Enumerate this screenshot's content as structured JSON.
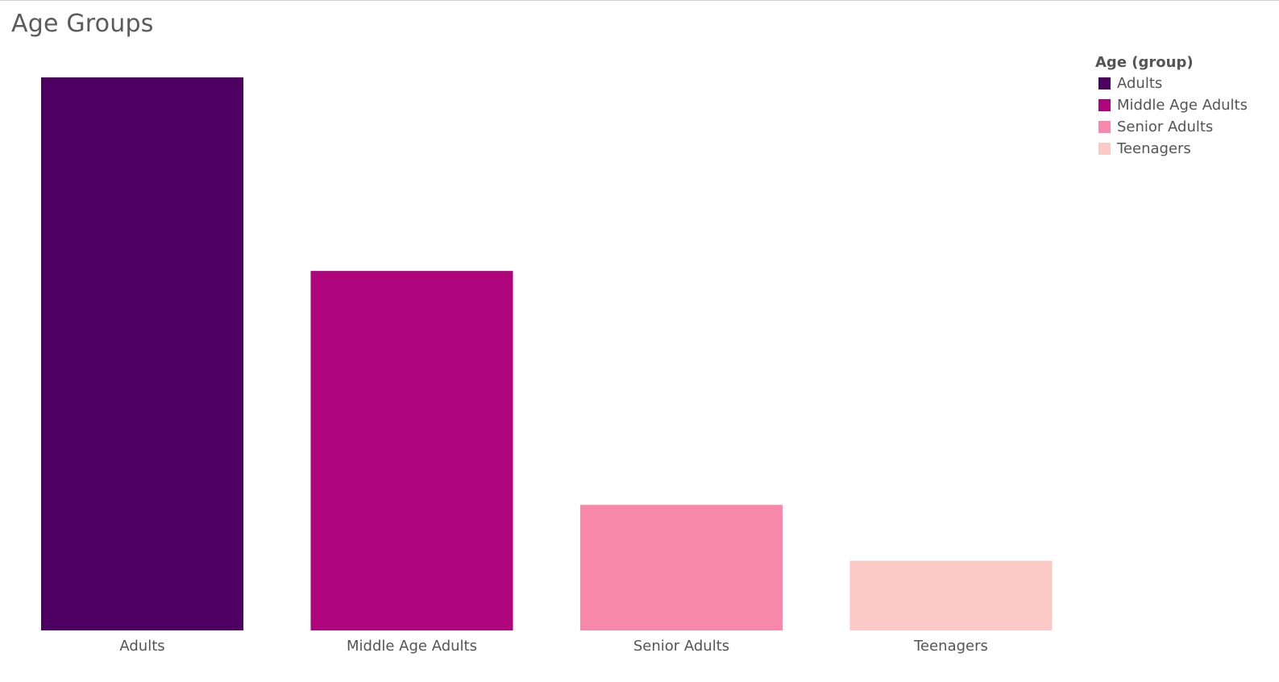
{
  "chart_data": {
    "type": "bar",
    "title": "Age Groups",
    "xlabel": "",
    "ylabel": "",
    "categories": [
      "Adults",
      "Middle Age Adults",
      "Senior Adults",
      "Teenagers"
    ],
    "values": [
      100,
      65,
      22.7,
      12.6
    ],
    "colors": [
      "#4d0062",
      "#ae057c",
      "#f788ac",
      "#fbcac6"
    ],
    "ylim": [
      0,
      100
    ],
    "grid": false,
    "legend": {
      "title": "Age (group)",
      "position": "top-right",
      "items": [
        "Adults",
        "Middle Age Adults",
        "Senior Adults",
        "Teenagers"
      ]
    }
  }
}
